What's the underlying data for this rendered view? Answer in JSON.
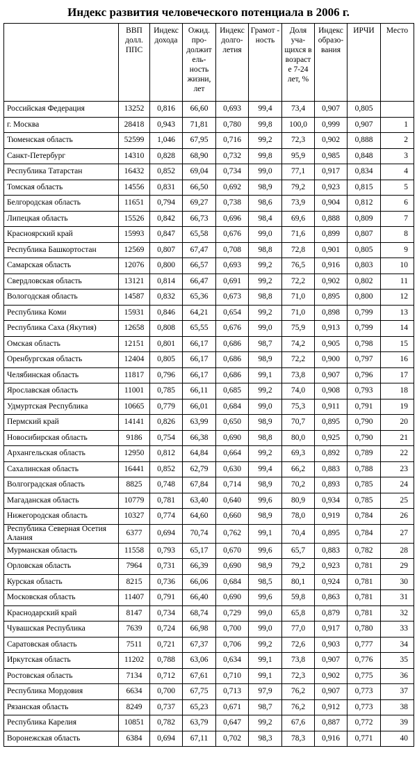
{
  "header": {
    "title": "Индекс развития человеческого потенциала в 2006 г."
  },
  "table": {
    "columns": [
      "ВВП долл. ППС",
      "Индекс дохода",
      "Ожид. про-должит ель-ность жизни, лет",
      "Индекс долго-летия",
      "Грамот - ность",
      "Доля уча-щихся в возраст е 7-24 лет, %",
      "Индекс образо-вания",
      "ИРЧИ",
      "Место"
    ],
    "rows": [
      [
        "Российская Федерация",
        13252,
        "0,816",
        "66,60",
        "0,693",
        "99,4",
        "73,4",
        "0,907",
        "0,805"
      ],
      [
        "г. Москва",
        28418,
        "0,943",
        "71,81",
        "0,780",
        "99,8",
        "100,0",
        "0,999",
        "0,907",
        1
      ],
      [
        "Тюменская область",
        52599,
        "1,046",
        "67,95",
        "0,716",
        "99,2",
        "72,3",
        "0,902",
        "0,888",
        2
      ],
      [
        "Санкт-Петербург",
        14310,
        "0,828",
        "68,90",
        "0,732",
        "99,8",
        "95,9",
        "0,985",
        "0,848",
        3
      ],
      [
        "Республика Татарстан",
        16432,
        "0,852",
        "69,04",
        "0,734",
        "99,0",
        "77,1",
        "0,917",
        "0,834",
        4
      ],
      [
        "Томская область",
        14556,
        "0,831",
        "66,50",
        "0,692",
        "98,9",
        "79,2",
        "0,923",
        "0,815",
        5
      ],
      [
        "Белгородская область",
        11651,
        "0,794",
        "69,27",
        "0,738",
        "98,6",
        "73,9",
        "0,904",
        "0,812",
        6
      ],
      [
        "Липецкая область",
        15526,
        "0,842",
        "66,73",
        "0,696",
        "98,4",
        "69,6",
        "0,888",
        "0,809",
        7
      ],
      [
        "Красноярский край",
        15993,
        "0,847",
        "65,58",
        "0,676",
        "99,0",
        "71,6",
        "0,899",
        "0,807",
        8
      ],
      [
        "Республика Башкортостан",
        12569,
        "0,807",
        "67,47",
        "0,708",
        "98,8",
        "72,8",
        "0,901",
        "0,805",
        9
      ],
      [
        "Самарская область",
        12076,
        "0,800",
        "66,57",
        "0,693",
        "99,2",
        "76,5",
        "0,916",
        "0,803",
        10
      ],
      [
        "Свердловская область",
        13121,
        "0,814",
        "66,47",
        "0,691",
        "99,2",
        "72,2",
        "0,902",
        "0,802",
        11
      ],
      [
        "Вологодская область",
        14587,
        "0,832",
        "65,36",
        "0,673",
        "98,8",
        "71,0",
        "0,895",
        "0,800",
        12
      ],
      [
        "Республика Коми",
        15931,
        "0,846",
        "64,21",
        "0,654",
        "99,2",
        "71,0",
        "0,898",
        "0,799",
        13
      ],
      [
        "Республика Саха (Якутия)",
        12658,
        "0,808",
        "65,55",
        "0,676",
        "99,0",
        "75,9",
        "0,913",
        "0,799",
        14
      ],
      [
        "Омская область",
        12151,
        "0,801",
        "66,17",
        "0,686",
        "98,7",
        "74,2",
        "0,905",
        "0,798",
        15
      ],
      [
        "Оренбургская область",
        12404,
        "0,805",
        "66,17",
        "0,686",
        "98,9",
        "72,2",
        "0,900",
        "0,797",
        16
      ],
      [
        "Челябинская область",
        11817,
        "0,796",
        "66,17",
        "0,686",
        "99,1",
        "73,8",
        "0,907",
        "0,796",
        17
      ],
      [
        "Ярославская область",
        11001,
        "0,785",
        "66,11",
        "0,685",
        "99,2",
        "74,0",
        "0,908",
        "0,793",
        18
      ],
      [
        "Удмуртская Республика",
        10665,
        "0,779",
        "66,01",
        "0,684",
        "99,0",
        "75,3",
        "0,911",
        "0,791",
        19
      ],
      [
        "Пермский край",
        14141,
        "0,826",
        "63,99",
        "0,650",
        "98,9",
        "70,7",
        "0,895",
        "0,790",
        20
      ],
      [
        "Новосибирская область",
        9186,
        "0,754",
        "66,38",
        "0,690",
        "98,8",
        "80,0",
        "0,925",
        "0,790",
        21
      ],
      [
        "Архангельская область",
        12950,
        "0,812",
        "64,84",
        "0,664",
        "99,2",
        "69,3",
        "0,892",
        "0,789",
        22
      ],
      [
        "Сахалинская область",
        16441,
        "0,852",
        "62,79",
        "0,630",
        "99,4",
        "66,2",
        "0,883",
        "0,788",
        23
      ],
      [
        "Волгоградская область",
        8825,
        "0,748",
        "67,84",
        "0,714",
        "98,9",
        "70,2",
        "0,893",
        "0,785",
        24
      ],
      [
        "Магаданская область",
        10779,
        "0,781",
        "63,40",
        "0,640",
        "99,6",
        "80,9",
        "0,934",
        "0,785",
        25
      ],
      [
        "Нижегородская область",
        10327,
        "0,774",
        "64,60",
        "0,660",
        "98,9",
        "78,0",
        "0,919",
        "0,784",
        26
      ],
      [
        "Республика Северная Осетия Алания",
        6377,
        "0,694",
        "70,74",
        "0,762",
        "99,1",
        "70,4",
        "0,895",
        "0,784",
        27
      ],
      [
        "Мурманская область",
        11558,
        "0,793",
        "65,17",
        "0,670",
        "99,6",
        "65,7",
        "0,883",
        "0,782",
        28
      ],
      [
        "Орловская область",
        7964,
        "0,731",
        "66,39",
        "0,690",
        "98,9",
        "79,2",
        "0,923",
        "0,781",
        29
      ],
      [
        "Курская область",
        8215,
        "0,736",
        "66,06",
        "0,684",
        "98,5",
        "80,1",
        "0,924",
        "0,781",
        30
      ],
      [
        "Московская область",
        11407,
        "0,791",
        "66,40",
        "0,690",
        "99,6",
        "59,8",
        "0,863",
        "0,781",
        31
      ],
      [
        "Краснодарский край",
        8147,
        "0,734",
        "68,74",
        "0,729",
        "99,0",
        "65,8",
        "0,879",
        "0,781",
        32
      ],
      [
        "Чувашская Республика",
        7639,
        "0,724",
        "66,98",
        "0,700",
        "99,0",
        "77,0",
        "0,917",
        "0,780",
        33
      ],
      [
        "Саратовская область",
        7511,
        "0,721",
        "67,37",
        "0,706",
        "99,2",
        "72,6",
        "0,903",
        "0,777",
        34
      ],
      [
        "Иркутская область",
        11202,
        "0,788",
        "63,06",
        "0,634",
        "99,1",
        "73,8",
        "0,907",
        "0,776",
        35
      ],
      [
        "Ростовская область",
        7134,
        "0,712",
        "67,61",
        "0,710",
        "99,1",
        "72,3",
        "0,902",
        "0,775",
        36
      ],
      [
        "Республика Мордовия",
        6634,
        "0,700",
        "67,75",
        "0,713",
        "97,9",
        "76,2",
        "0,907",
        "0,773",
        37
      ],
      [
        "Рязанская область",
        8249,
        "0,737",
        "65,23",
        "0,671",
        "98,7",
        "76,2",
        "0,912",
        "0,773",
        38
      ],
      [
        "Республика Карелия",
        10851,
        "0,782",
        "63,79",
        "0,647",
        "99,2",
        "67,6",
        "0,887",
        "0,772",
        39
      ],
      [
        "Воронежская область",
        6384,
        "0,694",
        "67,11",
        "0,702",
        "98,3",
        "78,3",
        "0,916",
        "0,771",
        40
      ]
    ]
  }
}
